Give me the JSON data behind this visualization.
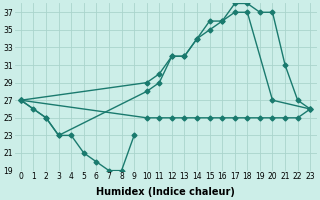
{
  "xlabel": "Humidex (Indice chaleur)",
  "series": [
    {
      "x": [
        0,
        1,
        2,
        3,
        4,
        5,
        6,
        7,
        8,
        9
      ],
      "y": [
        27,
        26,
        25,
        23,
        23,
        21,
        20,
        19,
        19,
        23
      ]
    },
    {
      "x": [
        0,
        2,
        3,
        10,
        11,
        12,
        13,
        14,
        15,
        16,
        17,
        18,
        20,
        23
      ],
      "y": [
        27,
        25,
        23,
        28,
        29,
        32,
        32,
        34,
        35,
        36,
        37,
        37,
        27,
        26
      ]
    },
    {
      "x": [
        0,
        10,
        11,
        12,
        13,
        14,
        15,
        16,
        17,
        18,
        19,
        20,
        21,
        22,
        23
      ],
      "y": [
        27,
        29,
        30,
        32,
        32,
        34,
        36,
        36,
        38,
        38,
        37,
        37,
        31,
        27,
        26
      ]
    },
    {
      "x": [
        0,
        10,
        11,
        12,
        13,
        14,
        15,
        16,
        17,
        18,
        19,
        20,
        21,
        22,
        23
      ],
      "y": [
        27,
        25,
        25,
        25,
        25,
        25,
        25,
        25,
        25,
        25,
        25,
        25,
        25,
        25,
        26
      ]
    }
  ],
  "color": "#1a7a6e",
  "bg_color": "#cceee8",
  "grid_color": "#aad4cc",
  "ylim": [
    19,
    38
  ],
  "xlim": [
    -0.5,
    23.5
  ],
  "yticks": [
    19,
    21,
    23,
    25,
    27,
    29,
    31,
    33,
    35,
    37
  ],
  "xticks": [
    0,
    1,
    2,
    3,
    4,
    5,
    6,
    7,
    8,
    9,
    10,
    11,
    12,
    13,
    14,
    15,
    16,
    17,
    18,
    19,
    20,
    21,
    22,
    23
  ],
  "marker": "D",
  "markersize": 2.5,
  "linewidth": 1.0,
  "tick_fontsize": 5.5,
  "xlabel_fontsize": 7
}
